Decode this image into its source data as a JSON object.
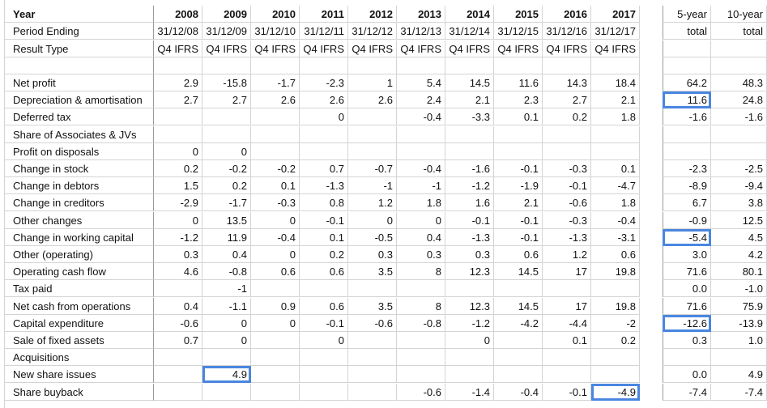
{
  "colors": {
    "highlight": "#4a86e0",
    "grid": "#d4d4d4",
    "divider": "#9a9a9a"
  },
  "header": {
    "year_label": "Year",
    "years": [
      "2008",
      "2009",
      "2010",
      "2011",
      "2012",
      "2013",
      "2014",
      "2015",
      "2016",
      "2017"
    ],
    "summary_headers": [
      "5-year",
      "10-year"
    ],
    "period_label": "Period Ending",
    "periods": [
      "31/12/08",
      "31/12/09",
      "31/12/10",
      "31/12/11",
      "31/12/12",
      "31/12/13",
      "31/12/14",
      "31/12/15",
      "31/12/16",
      "31/12/17"
    ],
    "period_summary": [
      "total",
      "total"
    ],
    "result_label": "Result Type",
    "result_types": [
      "Q4 IFRS",
      "Q4 IFRS",
      "Q4 IFRS",
      "Q4 IFRS",
      "Q4 IFRS",
      "Q4 IFRS",
      "Q4 IFRS",
      "Q4 IFRS",
      "Q4 IFRS",
      "Q4 IFRS"
    ]
  },
  "rows": [
    {
      "label": "Net profit",
      "values": [
        "2.9",
        "-15.8",
        "-1.7",
        "-2.3",
        "1",
        "5.4",
        "14.5",
        "11.6",
        "14.3",
        "18.4"
      ],
      "totals": [
        "64.2",
        "48.3"
      ]
    },
    {
      "label": "Depreciation & amortisation",
      "values": [
        "2.7",
        "2.7",
        "2.6",
        "2.6",
        "2.6",
        "2.4",
        "2.1",
        "2.3",
        "2.7",
        "2.1"
      ],
      "totals": [
        "11.6",
        "24.8"
      ]
    },
    {
      "label": "Deferred tax",
      "values": [
        "",
        "",
        "",
        "0",
        "",
        "-0.4",
        "-3.3",
        "0.1",
        "0.2",
        "1.8"
      ],
      "totals": [
        "-1.6",
        "-1.6"
      ]
    },
    {
      "label": "Share of Associates & JVs",
      "values": [
        "",
        "",
        "",
        "",
        "",
        "",
        "",
        "",
        "",
        ""
      ],
      "totals": [
        "",
        ""
      ]
    },
    {
      "label": "Profit on disposals",
      "values": [
        "0",
        "0",
        "",
        "",
        "",
        "",
        "",
        "",
        "",
        ""
      ],
      "totals": [
        "",
        ""
      ]
    },
    {
      "label": "Change in stock",
      "values": [
        "0.2",
        "-0.2",
        "-0.2",
        "0.7",
        "-0.7",
        "-0.4",
        "-1.6",
        "-0.1",
        "-0.3",
        "0.1"
      ],
      "totals": [
        "-2.3",
        "-2.5"
      ]
    },
    {
      "label": "Change in debtors",
      "values": [
        "1.5",
        "0.2",
        "0.1",
        "-1.3",
        "-1",
        "-1",
        "-1.2",
        "-1.9",
        "-0.1",
        "-4.7"
      ],
      "totals": [
        "-8.9",
        "-9.4"
      ]
    },
    {
      "label": "Change in creditors",
      "values": [
        "-2.9",
        "-1.7",
        "-0.3",
        "0.8",
        "1.2",
        "1.8",
        "1.6",
        "2.1",
        "-0.6",
        "1.8"
      ],
      "totals": [
        "6.7",
        "3.8"
      ]
    },
    {
      "label": "Other changes",
      "values": [
        "0",
        "13.5",
        "0",
        "-0.1",
        "0",
        "0",
        "-0.1",
        "-0.1",
        "-0.3",
        "-0.4"
      ],
      "totals": [
        "-0.9",
        "12.5"
      ]
    },
    {
      "label": "Change in working capital",
      "values": [
        "-1.2",
        "11.9",
        "-0.4",
        "0.1",
        "-0.5",
        "0.4",
        "-1.3",
        "-0.1",
        "-1.3",
        "-3.1"
      ],
      "totals": [
        "-5.4",
        "4.5"
      ]
    },
    {
      "label": "Other (operating)",
      "values": [
        "0.3",
        "0.4",
        "0",
        "0.2",
        "0.3",
        "0.3",
        "0.3",
        "0.6",
        "1.2",
        "0.6"
      ],
      "totals": [
        "3.0",
        "4.2"
      ]
    },
    {
      "label": "Operating cash flow",
      "values": [
        "4.6",
        "-0.8",
        "0.6",
        "0.6",
        "3.5",
        "8",
        "12.3",
        "14.5",
        "17",
        "19.8"
      ],
      "totals": [
        "71.6",
        "80.1"
      ]
    },
    {
      "label": "Tax paid",
      "values": [
        "",
        "-1",
        "",
        "",
        "",
        "",
        "",
        "",
        "",
        ""
      ],
      "totals": [
        "0.0",
        "-1.0"
      ]
    },
    {
      "label": "Net cash from operations",
      "values": [
        "0.4",
        "-1.1",
        "0.9",
        "0.6",
        "3.5",
        "8",
        "12.3",
        "14.5",
        "17",
        "19.8"
      ],
      "totals": [
        "71.6",
        "75.9"
      ]
    },
    {
      "label": "Capital expenditure",
      "values": [
        "-0.6",
        "0",
        "0",
        "-0.1",
        "-0.6",
        "-0.8",
        "-1.2",
        "-4.2",
        "-4.4",
        "-2"
      ],
      "totals": [
        "-12.6",
        "-13.9"
      ]
    },
    {
      "label": "Sale of fixed assets",
      "values": [
        "0.7",
        "0",
        "",
        "0",
        "",
        "",
        "0",
        "",
        "0.1",
        "0.2"
      ],
      "totals": [
        "0.3",
        "1.0"
      ]
    },
    {
      "label": "Acquisitions",
      "values": [
        "",
        "",
        "",
        "",
        "",
        "",
        "",
        "",
        "",
        ""
      ],
      "totals": [
        "",
        ""
      ]
    },
    {
      "label": "New share issues",
      "values": [
        "",
        "4.9",
        "",
        "",
        "",
        "",
        "",
        "",
        "",
        ""
      ],
      "totals": [
        "0.0",
        "4.9"
      ]
    },
    {
      "label": "Share buyback",
      "values": [
        "",
        "",
        "",
        "",
        "",
        "-0.6",
        "-1.4",
        "-0.4",
        "-0.1",
        "-4.9"
      ],
      "totals": [
        "-7.4",
        "-7.4"
      ]
    }
  ]
}
